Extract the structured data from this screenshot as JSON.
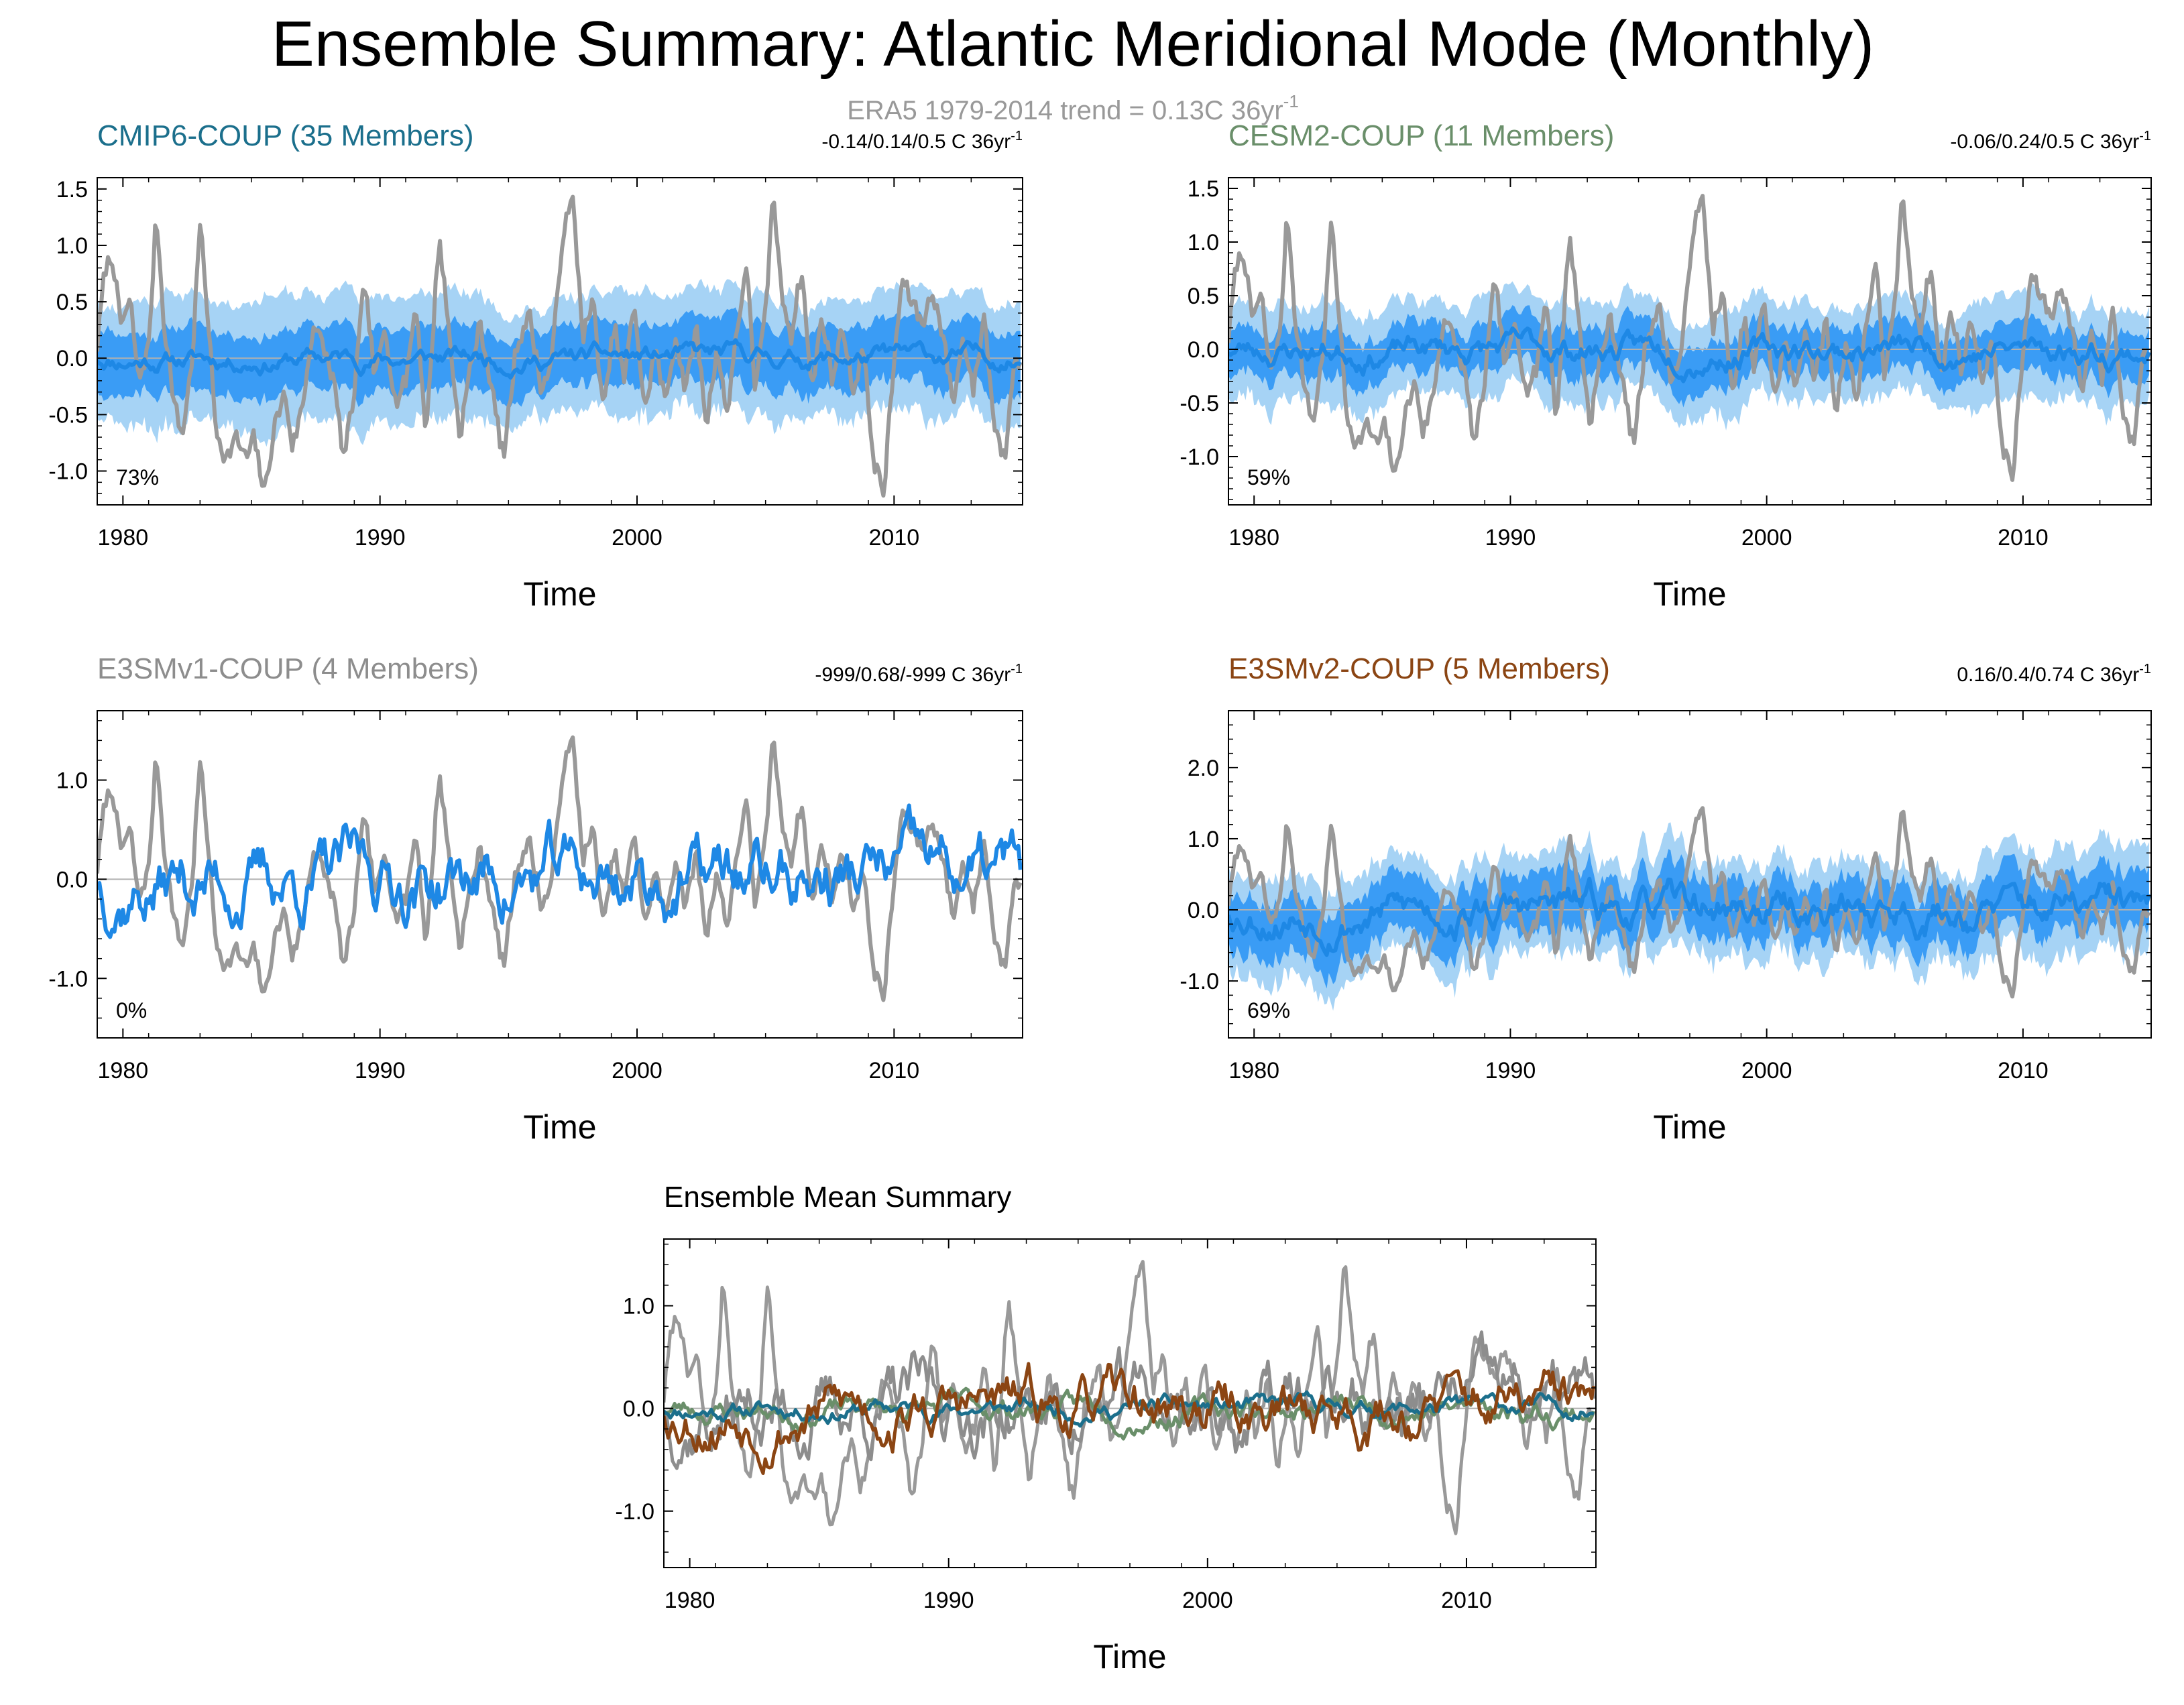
{
  "title": "Ensemble Summary: Atlantic Meridional Mode (Monthly)",
  "subtitle": "ERA5 1979-2014 trend = 0.13C 36yr",
  "subtitle_sup": "-1",
  "colors": {
    "obs": "#999999",
    "ens_mean_blue": "#1e88e5",
    "range_light": "#a6d3f5",
    "range_dark": "#3a9cf5",
    "zero_line": "#b0b0b0",
    "cmip6": "#1b6f8c",
    "cesm2": "#6a8f6a",
    "e3smv1": "#8d8d8d",
    "e3smv2": "#8b4513"
  },
  "chart_data": [
    {
      "type": "line",
      "panel": "CMIP6-COUP",
      "title": "CMIP6-COUP (35 Members)",
      "title_color": "#1b6f8c",
      "stats": "-0.14/0.14/0.5 C 36yr",
      "stats_sup": "-1",
      "percent": "73%",
      "xlabel": "Time",
      "xlim": [
        1979,
        2015
      ],
      "ylim": [
        -1.3,
        1.6
      ],
      "yticks": [
        -1.0,
        -0.5,
        0.0,
        0.5,
        1.0,
        1.5
      ],
      "ytick_labels": [
        "-1.0",
        "-0.5",
        "0.0",
        "0.5",
        "1.0",
        "1.5"
      ],
      "xticks": [
        1980,
        1990,
        2000,
        2010
      ],
      "xtick_labels": [
        "1980",
        "1990",
        "2000",
        "2010"
      ],
      "series": [
        {
          "name": "ensemble range (light)",
          "kind": "band",
          "amp": 0.55
        },
        {
          "name": "ensemble spread (dark)",
          "kind": "band",
          "amp": 0.28
        },
        {
          "name": "ensemble mean",
          "kind": "line",
          "seed": 11,
          "amp": 0.1
        },
        {
          "name": "ERA5 observed",
          "kind": "obs"
        }
      ]
    },
    {
      "type": "line",
      "panel": "CESM2-COUP",
      "title": "CESM2-COUP (11 Members)",
      "title_color": "#6a8f6a",
      "stats": "-0.06/0.24/0.5 C 36yr",
      "stats_sup": "-1",
      "percent": "59%",
      "xlabel": "Time",
      "xlim": [
        1979,
        2015
      ],
      "ylim": [
        -1.45,
        1.6
      ],
      "yticks": [
        -1.0,
        -0.5,
        0.0,
        0.5,
        1.0,
        1.5
      ],
      "ytick_labels": [
        "-1.0",
        "-0.5",
        "0.0",
        "0.5",
        "1.0",
        "1.5"
      ],
      "xticks": [
        1980,
        1990,
        2000,
        2010
      ],
      "xtick_labels": [
        "1980",
        "1990",
        "2000",
        "2010"
      ],
      "series": [
        {
          "name": "ensemble range (light)",
          "kind": "band",
          "amp": 0.45
        },
        {
          "name": "ensemble spread (dark)",
          "kind": "band",
          "amp": 0.22
        },
        {
          "name": "ensemble mean",
          "kind": "line",
          "seed": 23,
          "amp": 0.14
        },
        {
          "name": "ERA5 observed",
          "kind": "obs"
        }
      ]
    },
    {
      "type": "line",
      "panel": "E3SMv1-COUP",
      "title": "E3SMv1-COUP (4 Members)",
      "title_color": "#8d8d8d",
      "stats": "-999/0.68/-999 C 36yr",
      "stats_sup": "-1",
      "percent": "0%",
      "xlabel": "Time",
      "xlim": [
        1979,
        2015
      ],
      "ylim": [
        -1.6,
        1.7
      ],
      "yticks": [
        -1.0,
        0.0,
        1.0
      ],
      "ytick_labels": [
        "-1.0",
        "0.0",
        "1.0"
      ],
      "xticks": [
        1980,
        1990,
        2000,
        2010
      ],
      "xtick_labels": [
        "1980",
        "1990",
        "2000",
        "2010"
      ],
      "series": [
        {
          "name": "ensemble mean",
          "kind": "line",
          "seed": 37,
          "amp": 0.42
        },
        {
          "name": "ERA5 observed",
          "kind": "obs"
        }
      ]
    },
    {
      "type": "line",
      "panel": "E3SMv2-COUP",
      "title": "E3SMv2-COUP (5 Members)",
      "title_color": "#8b4513",
      "stats": "0.16/0.4/0.74 C 36yr",
      "stats_sup": "-1",
      "percent": "69%",
      "xlabel": "Time",
      "xlim": [
        1979,
        2015
      ],
      "ylim": [
        -1.8,
        2.8
      ],
      "yticks": [
        -1.0,
        0.0,
        1.0,
        2.0
      ],
      "ytick_labels": [
        "-1.0",
        "0.0",
        "1.0",
        "2.0"
      ],
      "xticks": [
        1980,
        1990,
        2000,
        2010
      ],
      "xtick_labels": [
        "1980",
        "1990",
        "2000",
        "2010"
      ],
      "series": [
        {
          "name": "ensemble range (light)",
          "kind": "band",
          "amp": 0.7
        },
        {
          "name": "ensemble spread (dark)",
          "kind": "band",
          "amp": 0.4
        },
        {
          "name": "ensemble mean",
          "kind": "line",
          "seed": 53,
          "amp": 0.3
        },
        {
          "name": "ERA5 observed",
          "kind": "obs"
        }
      ]
    },
    {
      "type": "line",
      "panel": "Ensemble Mean Summary",
      "title": "Ensemble Mean Summary",
      "title_color": "#000000",
      "xlabel": "Time",
      "xlim": [
        1979,
        2015
      ],
      "ylim": [
        -1.55,
        1.65
      ],
      "yticks": [
        -1.0,
        0.0,
        1.0
      ],
      "ytick_labels": [
        "-1.0",
        "0.0",
        "1.0"
      ],
      "xticks": [
        1980,
        1990,
        2000,
        2010
      ],
      "xtick_labels": [
        "1980",
        "1990",
        "2000",
        "2010"
      ],
      "series": [
        {
          "name": "ERA5 observed",
          "kind": "obs",
          "color": "#999999"
        },
        {
          "name": "E3SMv1-COUP",
          "kind": "line",
          "seed": 37,
          "amp": 0.42,
          "color": "#8d8d8d"
        },
        {
          "name": "CESM2-COUP",
          "kind": "line",
          "seed": 23,
          "amp": 0.14,
          "color": "#6a8f6a"
        },
        {
          "name": "CMIP6-COUP",
          "kind": "line",
          "seed": 11,
          "amp": 0.1,
          "color": "#1b6f8c"
        },
        {
          "name": "E3SMv2-COUP",
          "kind": "line",
          "seed": 53,
          "amp": 0.3,
          "color": "#8b4513"
        }
      ]
    }
  ]
}
